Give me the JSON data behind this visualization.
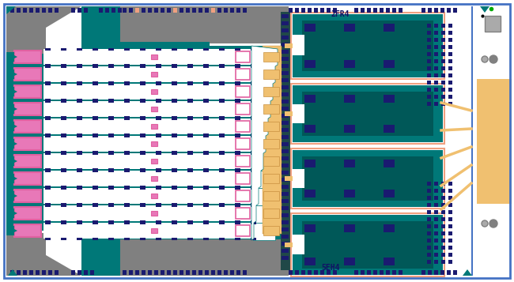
{
  "fig_width": 6.5,
  "fig_height": 3.57,
  "dpi": 100,
  "bg": "#ffffff",
  "border": "#4472c4",
  "teal": "#007878",
  "teal_dark": "#005858",
  "pink": "#e060a0",
  "pink_fill": "#e878b8",
  "navy": "#1a1a70",
  "navy2": "#2222aa",
  "orange": "#f0c070",
  "orange2": "#c89040",
  "salmon": "#f0a080",
  "gray": "#808080",
  "gray2": "#aaaaaa",
  "white": "#ffffff",
  "label_top": "2FR4",
  "label_bot": "5EH4",
  "label_color": "#111166"
}
